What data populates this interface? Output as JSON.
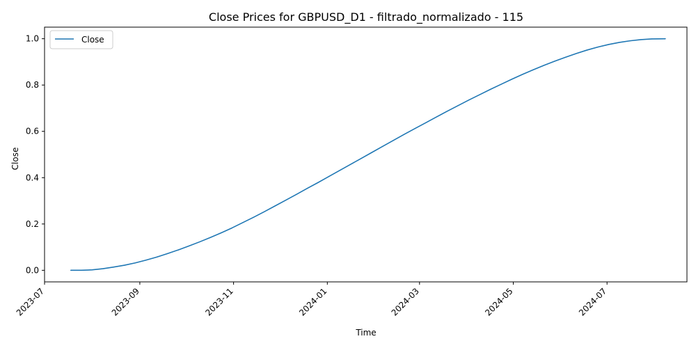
{
  "chart_data": {
    "type": "line",
    "title": "Close Prices for GBPUSD_D1 - filtrado_normalizado - 115",
    "xlabel": "Time",
    "ylabel": "Close",
    "xlim": [
      "2023-07-01",
      "2024-08-22"
    ],
    "ylim": [
      -0.05,
      1.05
    ],
    "x_ticks": [
      "2023-07-01",
      "2023-09-01",
      "2023-11-01",
      "2024-01-01",
      "2024-03-01",
      "2024-05-01",
      "2024-07-01"
    ],
    "x_tick_labels": [
      "2023-07",
      "2023-09",
      "2023-11",
      "2024-01",
      "2024-03",
      "2024-05",
      "2024-07"
    ],
    "y_ticks": [
      0.0,
      0.2,
      0.4,
      0.6,
      0.8,
      1.0
    ],
    "y_tick_labels": [
      "0.0",
      "0.2",
      "0.4",
      "0.6",
      "0.8",
      "1.0"
    ],
    "grid": false,
    "legend": "top-left",
    "series": [
      {
        "name": "Close",
        "color": "#1f77b4",
        "x": [
          "2023-07-18",
          "2023-07-25",
          "2023-08-01",
          "2023-08-08",
          "2023-08-15",
          "2023-08-22",
          "2023-08-29",
          "2023-09-05",
          "2023-09-12",
          "2023-09-19",
          "2023-09-26",
          "2023-10-03",
          "2023-10-10",
          "2023-10-17",
          "2023-10-24",
          "2023-10-31",
          "2023-11-07",
          "2023-11-14",
          "2023-11-21",
          "2023-11-28",
          "2023-12-05",
          "2023-12-12",
          "2023-12-19",
          "2023-12-26",
          "2024-01-02",
          "2024-01-09",
          "2024-01-16",
          "2024-01-23",
          "2024-01-30",
          "2024-02-06",
          "2024-02-13",
          "2024-02-20",
          "2024-02-27",
          "2024-03-05",
          "2024-03-12",
          "2024-03-19",
          "2024-03-26",
          "2024-04-02",
          "2024-04-09",
          "2024-04-16",
          "2024-04-23",
          "2024-04-30",
          "2024-05-07",
          "2024-05-14",
          "2024-05-21",
          "2024-05-28",
          "2024-06-04",
          "2024-06-11",
          "2024-06-18",
          "2024-06-25",
          "2024-07-02",
          "2024-07-09",
          "2024-07-16",
          "2024-07-23",
          "2024-07-30",
          "2024-08-08"
        ],
        "values": [
          0.0,
          0.0,
          0.002,
          0.007,
          0.014,
          0.022,
          0.032,
          0.044,
          0.057,
          0.072,
          0.088,
          0.105,
          0.123,
          0.142,
          0.162,
          0.183,
          0.206,
          0.229,
          0.253,
          0.278,
          0.303,
          0.328,
          0.354,
          0.379,
          0.405,
          0.431,
          0.457,
          0.483,
          0.509,
          0.535,
          0.561,
          0.587,
          0.612,
          0.637,
          0.662,
          0.687,
          0.711,
          0.735,
          0.758,
          0.781,
          0.803,
          0.825,
          0.846,
          0.866,
          0.885,
          0.903,
          0.92,
          0.936,
          0.951,
          0.964,
          0.975,
          0.984,
          0.991,
          0.996,
          0.999,
          1.0
        ]
      }
    ]
  }
}
